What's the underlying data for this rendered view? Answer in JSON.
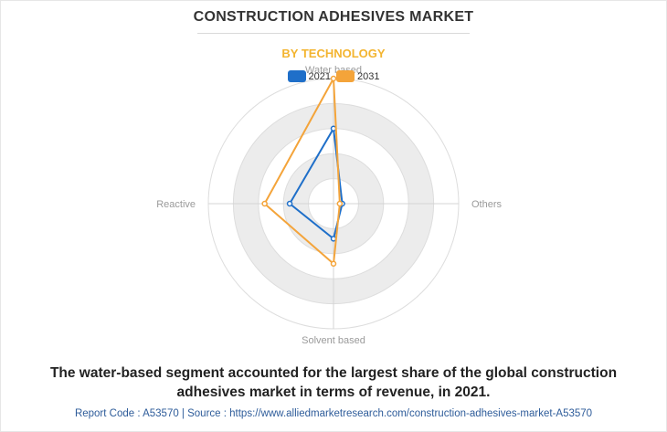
{
  "header": {
    "title": "CONSTRUCTION ADHESIVES MARKET",
    "subtitle": "BY TECHNOLOGY"
  },
  "colors": {
    "series_2021": "#1f6fc9",
    "series_2031": "#f4a43a",
    "ring_fill": "#ececec",
    "axis_label": "#9a9a9a"
  },
  "chart_data": {
    "type": "radar",
    "axes": [
      "Water based",
      "Others",
      "Solvent based",
      "Reactive"
    ],
    "scale_max": 10,
    "rings": 5,
    "series": [
      {
        "name": "2021",
        "values": [
          6.0,
          0.7,
          2.8,
          3.5
        ]
      },
      {
        "name": "2031",
        "values": [
          10.0,
          0.5,
          4.8,
          5.5
        ]
      }
    ],
    "legend_position": "top"
  },
  "caption": "The water-based segment accounted for the largest share of the global construction adhesives market in terms of revenue, in 2021.",
  "footer": "Report Code : A53570   |   Source : https://www.alliedmarketresearch.com/construction-adhesives-market-A53570"
}
